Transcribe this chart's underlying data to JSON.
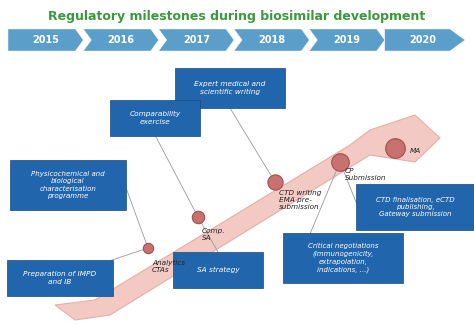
{
  "title": "Regulatory milestones during biosimilar development",
  "title_color": "#3A9A3A",
  "title_fontsize": 9,
  "background_color": "#ffffff",
  "timeline_years": [
    "2015",
    "2016",
    "2017",
    "2018",
    "2019",
    "2020"
  ],
  "timeline_color": "#5B9EC9",
  "arrow_fill_color": "#F2C4BE",
  "arrow_edge_color": "#E8A89E",
  "dot_color": "#C97070",
  "dot_outline": "#A05050",
  "box_fill_color": "#2166AC",
  "box_text_color": "#ffffff"
}
